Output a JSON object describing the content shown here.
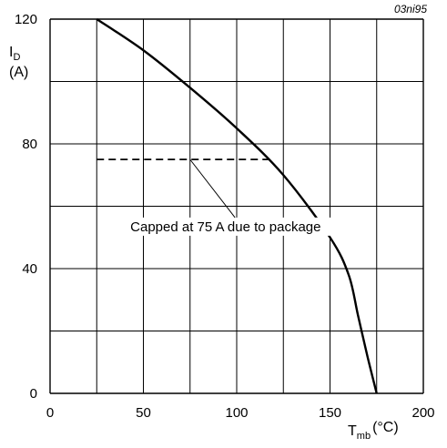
{
  "chart_data": {
    "type": "line",
    "code": "03ni95",
    "ylabel": {
      "symbol": "I",
      "sub": "D",
      "unit": "(A)"
    },
    "xlabel": {
      "symbol": "T",
      "sub": "mb",
      "unit": "(°C)"
    },
    "xlim": [
      0,
      200
    ],
    "ylim": [
      0,
      120
    ],
    "x_ticks": [
      0,
      50,
      100,
      150,
      200
    ],
    "x_tick_labels": [
      "0",
      "50",
      "100",
      "150",
      "200"
    ],
    "y_ticks": [
      0,
      40,
      80,
      120
    ],
    "y_tick_labels": [
      "0",
      "40",
      "80",
      "120"
    ],
    "grid": true,
    "series": [
      {
        "style": "solid",
        "x": [
          25,
          50,
          75,
          100,
          125,
          150,
          160,
          165,
          170,
          175
        ],
        "y": [
          120,
          110,
          98,
          85,
          70,
          50,
          38,
          25,
          12,
          0
        ]
      },
      {
        "style": "dashed",
        "x": [
          25,
          118
        ],
        "y": [
          75,
          75
        ]
      }
    ],
    "annotations": [
      {
        "text": "Capped at 75 A due to package",
        "x": 43,
        "y": 52,
        "pointer_to": [
          75,
          75
        ]
      }
    ]
  }
}
